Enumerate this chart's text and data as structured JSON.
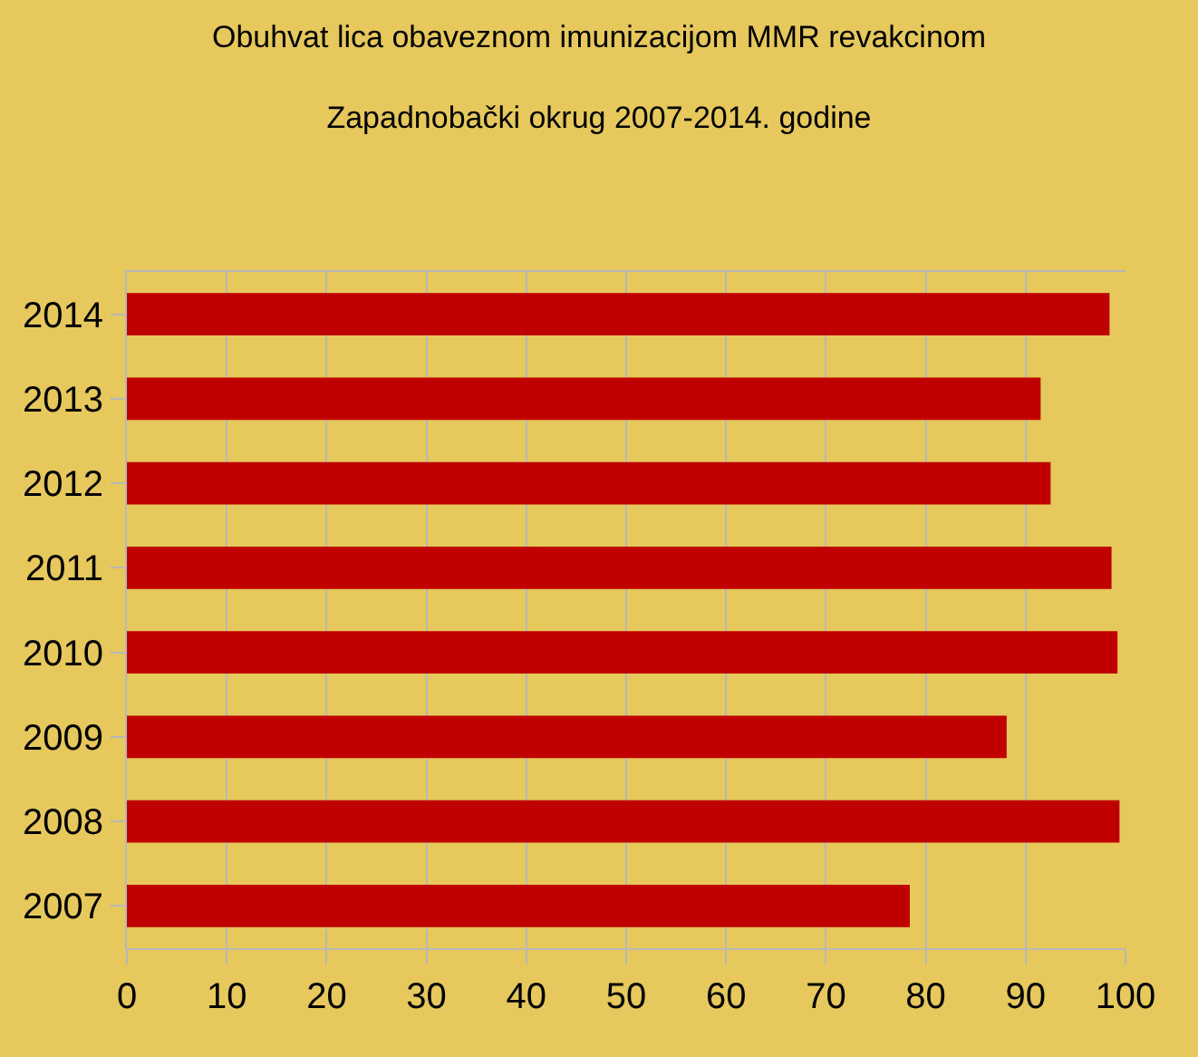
{
  "chart_data": {
    "type": "bar",
    "orientation": "horizontal",
    "title": "Obuhvat lica obaveznom imunizacijom MMR revakcinom\nZapadnobački okrug 2007-2014. godine",
    "categories": [
      "2014",
      "2013",
      "2012",
      "2011",
      "2010",
      "2009",
      "2008",
      "2007"
    ],
    "values": [
      98.4,
      91.5,
      92.5,
      98.6,
      99.2,
      88.1,
      99.4,
      78.4
    ],
    "color": "#c00000",
    "xlim": [
      0,
      100
    ],
    "xticks": [
      0,
      10,
      20,
      30,
      40,
      50,
      60,
      70,
      80,
      90,
      100
    ],
    "grid": "x"
  }
}
